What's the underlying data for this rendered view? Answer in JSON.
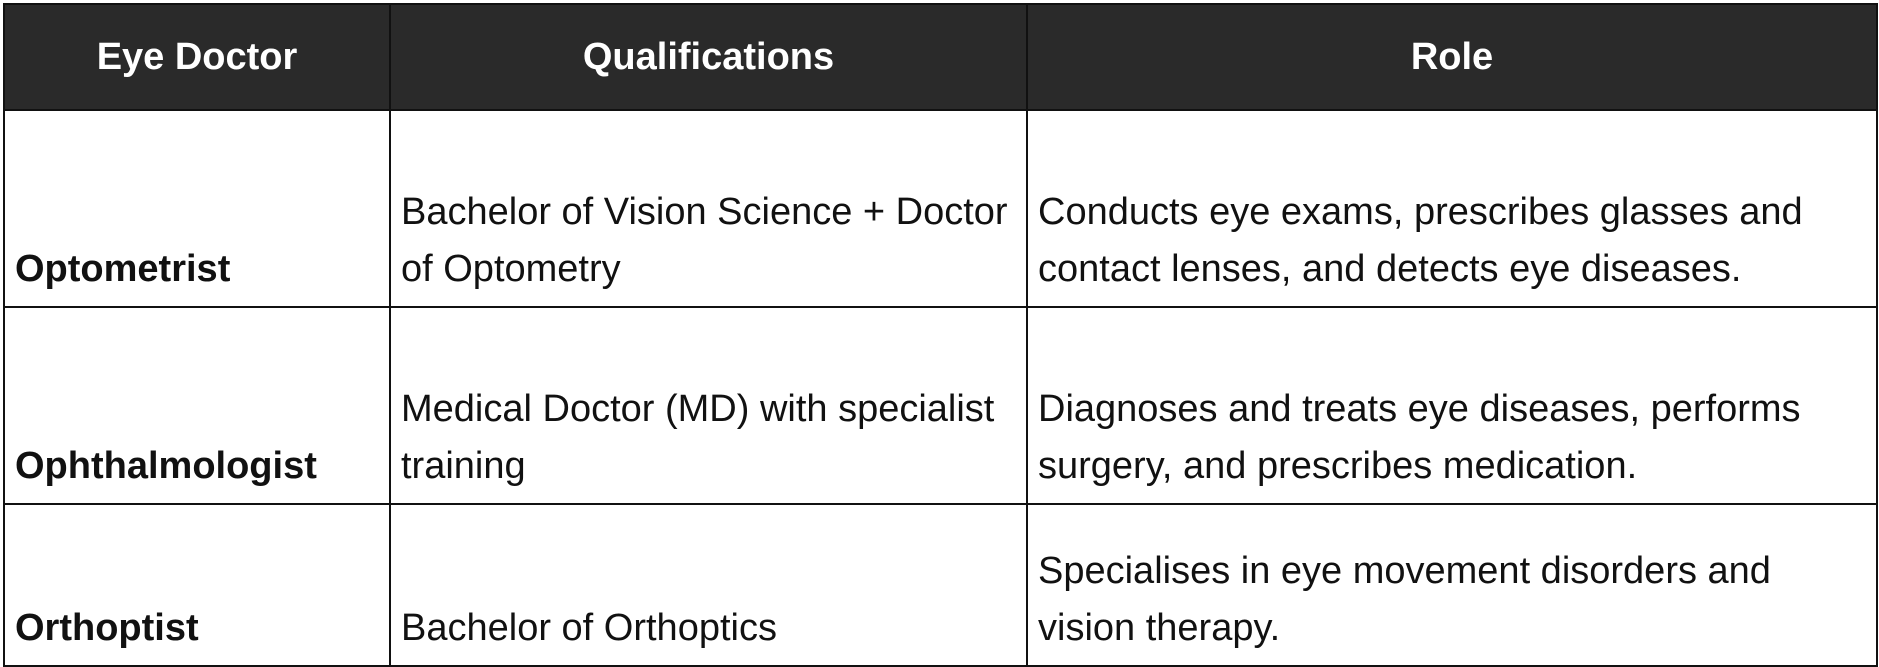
{
  "table": {
    "headers": [
      "Eye Doctor",
      "Qualifications",
      "Role"
    ],
    "rows": [
      {
        "doctor": "Optometrist",
        "qualifications": "Bachelor of Vision Science + Doctor of Optometry",
        "role": "Conducts eye exams, prescribes glasses and contact lenses, and detects eye diseases."
      },
      {
        "doctor": "Ophthalmologist",
        "qualifications": "Medical Doctor (MD) with specialist training",
        "role": "Diagnoses and treats eye diseases, performs surgery, and prescribes medication."
      },
      {
        "doctor": "Orthoptist",
        "qualifications": "Bachelor of Orthoptics",
        "role": "Specialises in eye movement disorders and vision therapy."
      }
    ],
    "header_bg": "#2a2a2a"
  }
}
